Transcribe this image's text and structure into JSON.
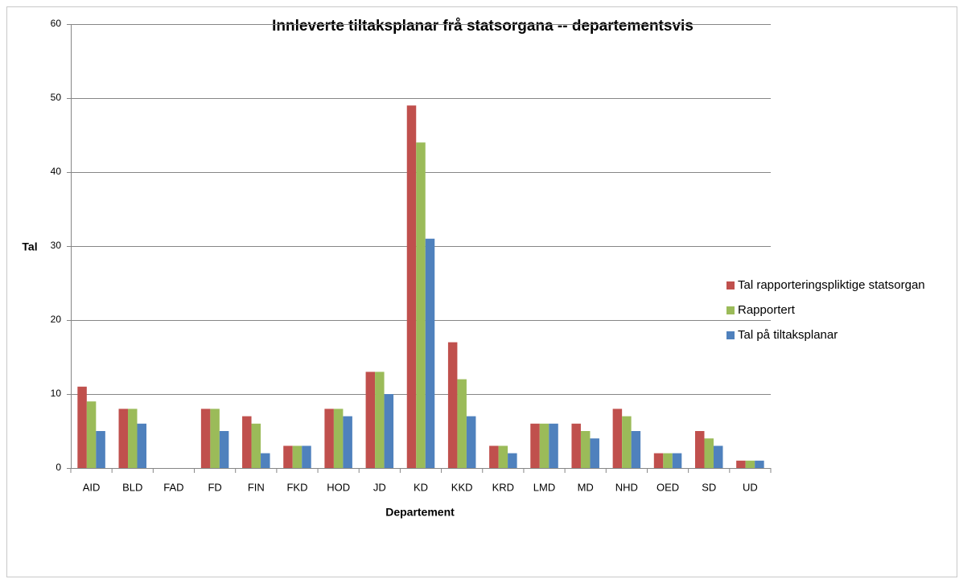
{
  "chart_data": {
    "type": "bar",
    "title": "Innleverte tiltaksplanar frå statsorgana -- departementsvis",
    "x_label": "Departement",
    "y_label": "Tal",
    "categories": [
      "AID",
      "BLD",
      "FAD",
      "FD",
      "FIN",
      "FKD",
      "HOD",
      "JD",
      "KD",
      "KKD",
      "KRD",
      "LMD",
      "MD",
      "NHD",
      "OED",
      "SD",
      "UD"
    ],
    "series": [
      {
        "name": "Tal rapporteringspliktige statsorgan",
        "color": "#c0504d",
        "values": [
          11,
          8,
          0,
          8,
          7,
          3,
          8,
          13,
          49,
          17,
          3,
          6,
          6,
          8,
          2,
          5,
          1
        ]
      },
      {
        "name": "Rapportert",
        "color": "#9bbb59",
        "values": [
          9,
          8,
          0,
          8,
          6,
          3,
          8,
          13,
          44,
          12,
          3,
          6,
          5,
          7,
          2,
          4,
          1
        ]
      },
      {
        "name": "Tal på tiltaksplanar",
        "color": "#4f81bd",
        "values": [
          5,
          6,
          0,
          5,
          2,
          3,
          7,
          10,
          31,
          7,
          2,
          6,
          4,
          5,
          2,
          3,
          1
        ]
      }
    ],
    "ylim": [
      0,
      60
    ],
    "yticks": [
      0,
      10,
      20,
      30,
      40,
      50,
      60
    ],
    "grid": true,
    "legend": "right"
  }
}
